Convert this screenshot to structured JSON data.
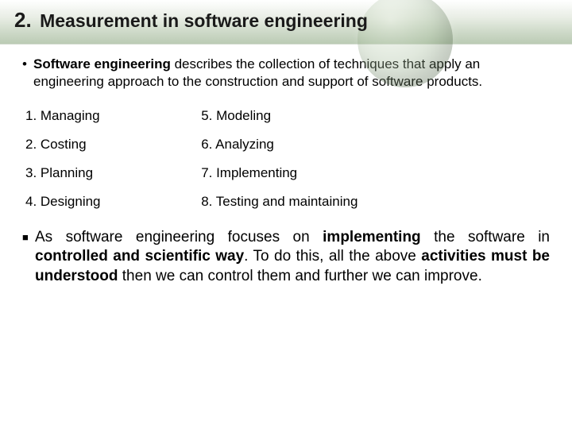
{
  "heading": {
    "number": "2.",
    "title": "Measurement in software engineering"
  },
  "para1": {
    "bold_lead": "Software engineering",
    "rest": " describes the collection of techniques that apply an engineering approach to the construction and support of software products."
  },
  "activities": {
    "rows": [
      {
        "left": "1. Managing",
        "right": "5. Modeling"
      },
      {
        "left": "2. Costing",
        "right": "6. Analyzing"
      },
      {
        "left": "3. Planning",
        "right": "7. Implementing"
      },
      {
        "left": "4. Designing",
        "right": "8. Testing and maintaining"
      }
    ]
  },
  "para2": {
    "pre": "As software engineering focuses on ",
    "b1": "implementing",
    "mid1": " the software in ",
    "b2": "controlled and scientific way",
    "mid2": ". To do this, all the above ",
    "b3": "activities must be understood",
    "post": " then we can control them and further we can improve."
  },
  "colors": {
    "text": "#000000",
    "band_tint": "#aac0a0"
  }
}
